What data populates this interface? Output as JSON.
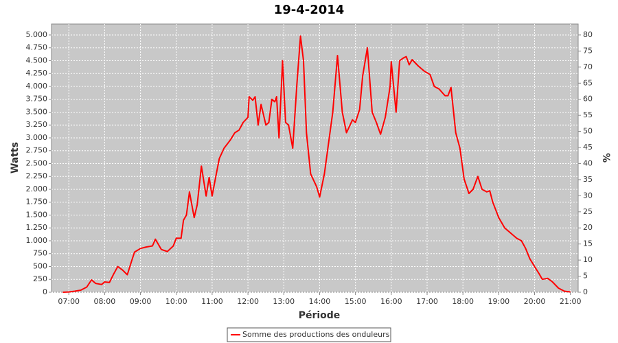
{
  "chart_data": {
    "type": "line",
    "title": "19-4-2014",
    "x_label": "Période",
    "y_label": "Watts",
    "y2_label": "%",
    "x": [
      "06:50",
      "07:00",
      "07:10",
      "07:20",
      "07:30",
      "07:38",
      "07:45",
      "07:55",
      "08:00",
      "08:08",
      "08:15",
      "08:22",
      "08:30",
      "08:38",
      "08:45",
      "08:50",
      "09:00",
      "09:10",
      "09:20",
      "09:25",
      "09:35",
      "09:45",
      "09:55",
      "10:00",
      "10:08",
      "10:12",
      "10:17",
      "10:22",
      "10:30",
      "10:35",
      "10:42",
      "10:50",
      "10:55",
      "11:00",
      "11:07",
      "11:12",
      "11:20",
      "11:30",
      "11:38",
      "11:45",
      "11:52",
      "12:00",
      "12:02",
      "12:08",
      "12:12",
      "12:17",
      "12:22",
      "12:30",
      "12:35",
      "12:40",
      "12:45",
      "12:48",
      "12:52",
      "12:58",
      "13:03",
      "13:08",
      "13:15",
      "13:22",
      "13:28",
      "13:33",
      "13:38",
      "13:45",
      "13:55",
      "14:00",
      "14:08",
      "14:15",
      "14:22",
      "14:30",
      "14:38",
      "14:45",
      "14:55",
      "15:00",
      "15:07",
      "15:12",
      "15:20",
      "15:28",
      "15:35",
      "15:42",
      "15:50",
      "15:58",
      "16:00",
      "16:08",
      "16:14",
      "16:20",
      "16:25",
      "16:30",
      "16:35",
      "16:45",
      "16:55",
      "17:05",
      "17:12",
      "17:20",
      "17:30",
      "17:35",
      "17:40",
      "17:48",
      "17:55",
      "18:02",
      "18:10",
      "18:17",
      "18:25",
      "18:32",
      "18:40",
      "18:45",
      "18:50",
      "19:00",
      "19:10",
      "19:20",
      "19:30",
      "19:38",
      "19:45",
      "19:52",
      "20:00",
      "20:08",
      "20:13",
      "20:22",
      "20:30",
      "20:40",
      "20:50",
      "21:00"
    ],
    "series": [
      {
        "name": "Somme des productions des onduleurs",
        "color": "#ff0000",
        "values": [
          0,
          5,
          20,
          40,
          100,
          240,
          170,
          150,
          200,
          190,
          350,
          500,
          430,
          340,
          600,
          780,
          850,
          880,
          900,
          1030,
          830,
          790,
          900,
          1050,
          1050,
          1400,
          1500,
          1950,
          1450,
          1700,
          2450,
          1870,
          2230,
          1870,
          2300,
          2600,
          2800,
          2950,
          3100,
          3150,
          3300,
          3400,
          3800,
          3730,
          3800,
          3250,
          3650,
          3250,
          3300,
          3750,
          3700,
          3800,
          3000,
          4500,
          3300,
          3250,
          2800,
          4050,
          4980,
          4500,
          3100,
          2300,
          2050,
          1850,
          2300,
          2900,
          3500,
          4600,
          3500,
          3100,
          3350,
          3300,
          3550,
          4200,
          4750,
          3500,
          3300,
          3070,
          3400,
          4000,
          4480,
          3500,
          4500,
          4550,
          4580,
          4420,
          4520,
          4400,
          4300,
          4230,
          4000,
          3950,
          3820,
          3820,
          3980,
          3100,
          2800,
          2200,
          1920,
          2000,
          2250,
          2000,
          1950,
          1970,
          1750,
          1450,
          1250,
          1150,
          1050,
          1000,
          850,
          650,
          500,
          350,
          250,
          270,
          200,
          80,
          20,
          5
        ]
      }
    ],
    "xlim": [
      "06:31",
      "21:13"
    ],
    "xticks": [
      "07:00",
      "08:00",
      "09:00",
      "10:00",
      "11:00",
      "12:00",
      "13:00",
      "14:00",
      "15:00",
      "16:00",
      "17:00",
      "18:00",
      "19:00",
      "20:00",
      "21:00"
    ],
    "ylim": [
      0,
      5213
    ],
    "yticks": [
      0,
      250,
      500,
      750,
      {
        "value": 1000,
        "label": "1.000"
      },
      {
        "value": 1250,
        "label": "1.250"
      },
      {
        "value": 1500,
        "label": "1.500"
      },
      {
        "value": 1750,
        "label": "1.750"
      },
      {
        "value": 2000,
        "label": "2.000"
      },
      {
        "value": 2250,
        "label": "2.250"
      },
      {
        "value": 2500,
        "label": "2.500"
      },
      {
        "value": 2750,
        "label": "2.750"
      },
      {
        "value": 3000,
        "label": "3.000"
      },
      {
        "value": 3250,
        "label": "3.250"
      },
      {
        "value": 3500,
        "label": "3.500"
      },
      {
        "value": 3750,
        "label": "3.750"
      },
      {
        "value": 4000,
        "label": "4.000"
      },
      {
        "value": 4250,
        "label": "4.250"
      },
      {
        "value": 4500,
        "label": "4.500"
      },
      {
        "value": 4750,
        "label": "4.750"
      },
      {
        "value": 5000,
        "label": "5.000"
      }
    ],
    "y2lim": [
      0,
      83.4
    ],
    "y2ticks": [
      0,
      5,
      10,
      15,
      20,
      25,
      30,
      35,
      40,
      45,
      50,
      55,
      60,
      65,
      70,
      75,
      80
    ],
    "grid": true,
    "legend": "bottom"
  }
}
